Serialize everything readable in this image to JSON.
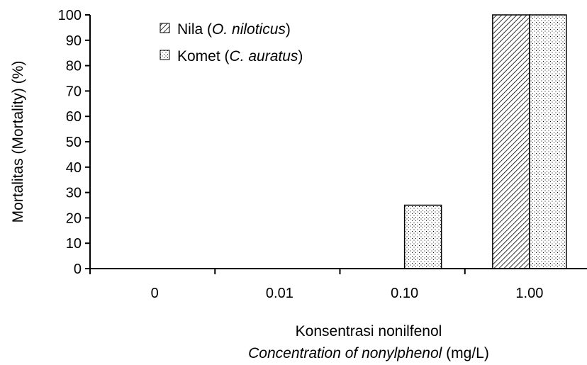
{
  "chart_data": {
    "type": "bar",
    "categories": [
      "0",
      "0.01",
      "0.10",
      "1.00"
    ],
    "series": [
      {
        "name": "Nila (O. niloticus)",
        "name_plain": "Nila (",
        "name_italic": "O. niloticus",
        "name_close": ")",
        "pattern": "diagonal-hatch",
        "values": [
          0,
          0,
          0,
          100
        ]
      },
      {
        "name": "Komet (C. auratus)",
        "name_plain": "Komet (",
        "name_italic": "C.  auratus",
        "name_close": ")",
        "pattern": "dotted",
        "values": [
          0,
          0,
          25,
          100
        ]
      }
    ],
    "ylim": [
      0,
      100
    ],
    "yticks": [
      0,
      10,
      20,
      30,
      40,
      50,
      60,
      70,
      80,
      90,
      100
    ],
    "ylabel": "Mortalitas (Mortality) (%)",
    "xlabel_line1": "Konsentrasi nonilfenol",
    "xlabel_line2_italic": "Concentration of nonylphenol",
    "xlabel_line2_unit": " (mg/L)",
    "legend_position": "top-center",
    "grid": false
  }
}
